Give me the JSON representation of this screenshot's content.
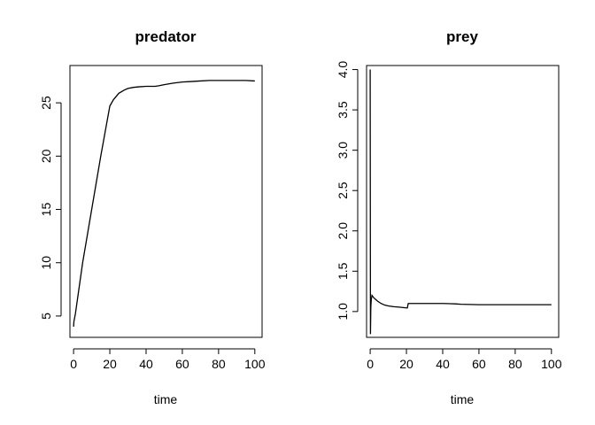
{
  "chart_data": [
    {
      "type": "line",
      "title": "predator",
      "xlabel": "time",
      "ylabel": "",
      "xlim": [
        -2,
        104
      ],
      "ylim": [
        3.0,
        28.5
      ],
      "xticks": [
        0,
        20,
        40,
        60,
        80,
        100
      ],
      "yticks": [
        5,
        10,
        15,
        20,
        25
      ],
      "grid": false,
      "series": [
        {
          "x": [
            0,
            0.2,
            1,
            5,
            10,
            15,
            20,
            22,
            25,
            28,
            30,
            33,
            36,
            40,
            45,
            47,
            50,
            55,
            60,
            65,
            70,
            75,
            80,
            85,
            90,
            95,
            100
          ],
          "values": [
            4.0,
            4.5,
            5.2,
            10.0,
            15.0,
            20.0,
            24.7,
            25.3,
            25.9,
            26.2,
            26.35,
            26.45,
            26.5,
            26.55,
            26.55,
            26.6,
            26.7,
            26.85,
            26.95,
            27.0,
            27.05,
            27.1,
            27.1,
            27.1,
            27.1,
            27.1,
            27.05
          ]
        }
      ]
    },
    {
      "type": "line",
      "title": "prey",
      "xlabel": "time",
      "ylabel": "",
      "xlim": [
        -2,
        104
      ],
      "ylim": [
        0.68,
        4.05
      ],
      "xticks": [
        0,
        20,
        40,
        60,
        80,
        100
      ],
      "yticks": [
        1.0,
        1.5,
        2.0,
        2.5,
        3.0,
        3.5,
        4.0
      ],
      "grid": false,
      "series": [
        {
          "x": [
            0,
            0.15,
            0.35,
            0.6,
            1,
            2,
            4,
            6,
            8,
            10,
            13,
            16,
            20,
            20.5,
            21,
            30,
            40,
            47,
            50,
            60,
            70,
            80,
            90,
            100
          ],
          "values": [
            4.0,
            0.72,
            1.05,
            1.15,
            1.2,
            1.17,
            1.13,
            1.1,
            1.08,
            1.07,
            1.06,
            1.055,
            1.045,
            1.045,
            1.1,
            1.1,
            1.1,
            1.095,
            1.09,
            1.085,
            1.085,
            1.085,
            1.085,
            1.085
          ]
        }
      ]
    }
  ]
}
